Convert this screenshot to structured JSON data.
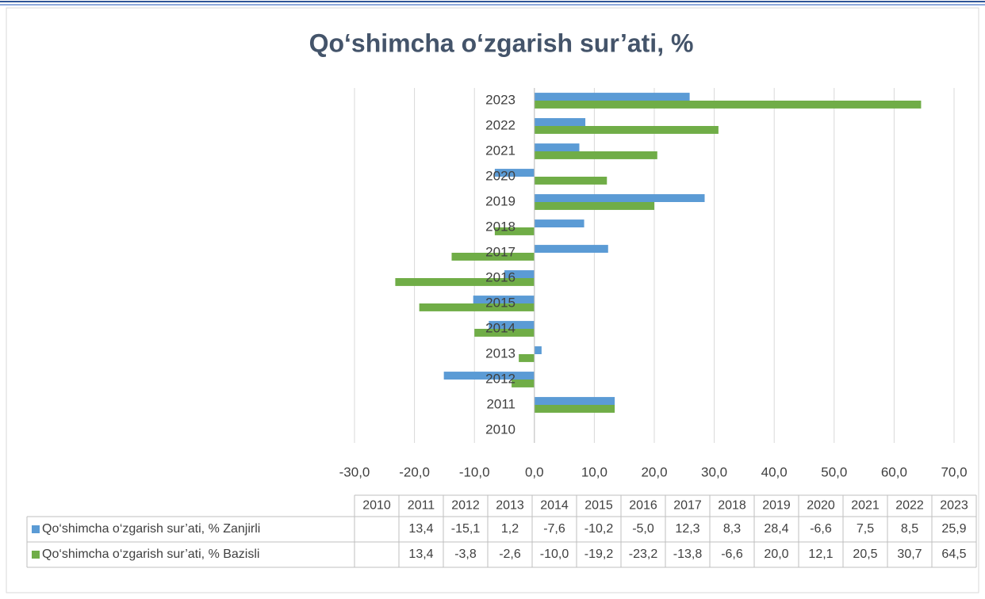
{
  "chart_data": {
    "type": "bar",
    "orientation": "horizontal",
    "title": "Qo‘shimcha o‘zgarish sur’ati, %",
    "categories": [
      "2010",
      "2011",
      "2012",
      "2013",
      "2014",
      "2015",
      "2016",
      "2017",
      "2018",
      "2019",
      "2020",
      "2021",
      "2022",
      "2023"
    ],
    "series": [
      {
        "name": "Qo‘shimcha o‘zgarish sur’ati, % Zanjirli",
        "color": "#5b9bd5",
        "values": [
          null,
          13.4,
          -15.1,
          1.2,
          -7.6,
          -10.2,
          -5.0,
          12.3,
          8.3,
          28.4,
          -6.6,
          7.5,
          8.5,
          25.9
        ],
        "value_labels": [
          null,
          "13,4",
          "-15,1",
          "1,2",
          "-7,6",
          "-10,2",
          "-5,0",
          "12,3",
          "8,3",
          "28,4",
          "-6,6",
          "7,5",
          "8,5",
          "25,9"
        ]
      },
      {
        "name": "Qo‘shimcha o‘zgarish sur’ati, % Bazisli",
        "color": "#70ad47",
        "values": [
          null,
          13.4,
          -3.8,
          -2.6,
          -10.0,
          -19.2,
          -23.2,
          -13.8,
          -6.6,
          20.0,
          12.1,
          20.5,
          30.7,
          64.5
        ],
        "value_labels": [
          null,
          "13,4",
          "-3,8",
          "-2,6",
          "-10,0",
          "-19,2",
          "-23,2",
          "-13,8",
          "-6,6",
          "20,0",
          "12,1",
          "20,5",
          "30,7",
          "64,5"
        ]
      }
    ],
    "xlim": [
      -30,
      70
    ],
    "xticks": [
      {
        "value": -30,
        "label": "-30,0"
      },
      {
        "value": -20,
        "label": "-20,0"
      },
      {
        "value": -10,
        "label": "-10,0"
      },
      {
        "value": 0,
        "label": "0,0"
      },
      {
        "value": 10,
        "label": "10,0"
      },
      {
        "value": 20,
        "label": "20,0"
      },
      {
        "value": 30,
        "label": "30,0"
      },
      {
        "value": 40,
        "label": "40,0"
      },
      {
        "value": 50,
        "label": "50,0"
      },
      {
        "value": 60,
        "label": "60,0"
      },
      {
        "value": 70,
        "label": "70,0"
      }
    ],
    "grid": true,
    "data_table": true
  }
}
